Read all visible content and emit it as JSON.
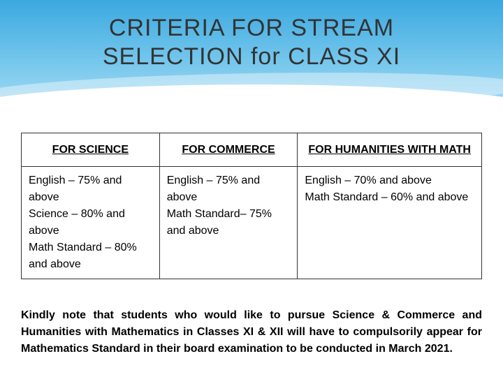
{
  "title_line1": "CRITERIA FOR STREAM",
  "title_line2": "SELECTION for CLASS XI",
  "table": {
    "headers": [
      "FOR SCIENCE",
      "FOR COMMERCE",
      "FOR HUMANITIES WITH MATH"
    ],
    "rows": [
      {
        "science": "English – 75% and above\nScience – 80% and above\nMath Standard – 80% and above",
        "commerce": "English – 75% and above\nMath Standard– 75% and above",
        "humanities": "English – 70% and above\nMath Standard – 60% and above"
      }
    ]
  },
  "note": "Kindly note that students who would like to pursue Science & Commerce and Humanities with Mathematics in Classes XI & XII will have to compulsorily appear for Mathematics Standard in their board examination to be conducted in March 2021.",
  "colors": {
    "wave_top": "#3ba8e0",
    "wave_mid": "#6fc4eb",
    "wave_bottom": "#a8dcf5",
    "title_color": "#333333",
    "border_color": "#333333",
    "text_color": "#000000",
    "background": "#ffffff"
  },
  "fonts": {
    "title_size": 34,
    "body_size": 16,
    "header_size": 16
  }
}
